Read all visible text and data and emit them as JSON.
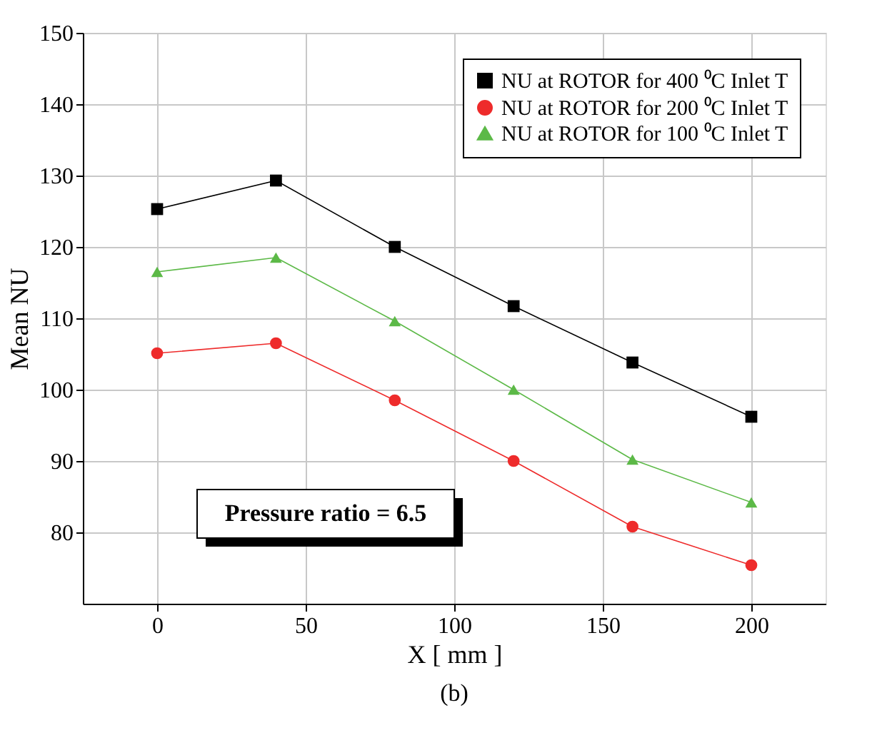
{
  "chart_data": {
    "type": "line",
    "title": "(b)",
    "xlabel": "X [ mm ]",
    "ylabel": "Mean NU",
    "x": [
      0,
      40,
      80,
      120,
      160,
      200
    ],
    "series": [
      {
        "name": "NU at ROTOR for 400 ⁰C Inlet T",
        "color": "#000000",
        "marker": "square",
        "values": [
          125.3,
          129.3,
          120.0,
          111.7,
          103.8,
          96.2
        ]
      },
      {
        "name": "NU at ROTOR for 200 ⁰C Inlet T",
        "color": "#ee2b2b",
        "marker": "circle",
        "values": [
          105.1,
          106.5,
          98.5,
          90.0,
          80.8,
          75.4
        ]
      },
      {
        "name": "NU at ROTOR for 100 ⁰C Inlet T",
        "color": "#5cb947",
        "marker": "triangle",
        "values": [
          116.5,
          118.5,
          109.6,
          100.0,
          90.2,
          84.2
        ]
      }
    ],
    "xlim": [
      -25,
      225
    ],
    "xticks": [
      0,
      50,
      100,
      150,
      200
    ],
    "ylim": [
      70,
      150
    ],
    "yticks": [
      80,
      90,
      100,
      110,
      120,
      130,
      140,
      150
    ],
    "grid": true,
    "legend": "top right",
    "line_style": "solid",
    "annotations": [
      "Pressure ratio = 6.5"
    ]
  }
}
